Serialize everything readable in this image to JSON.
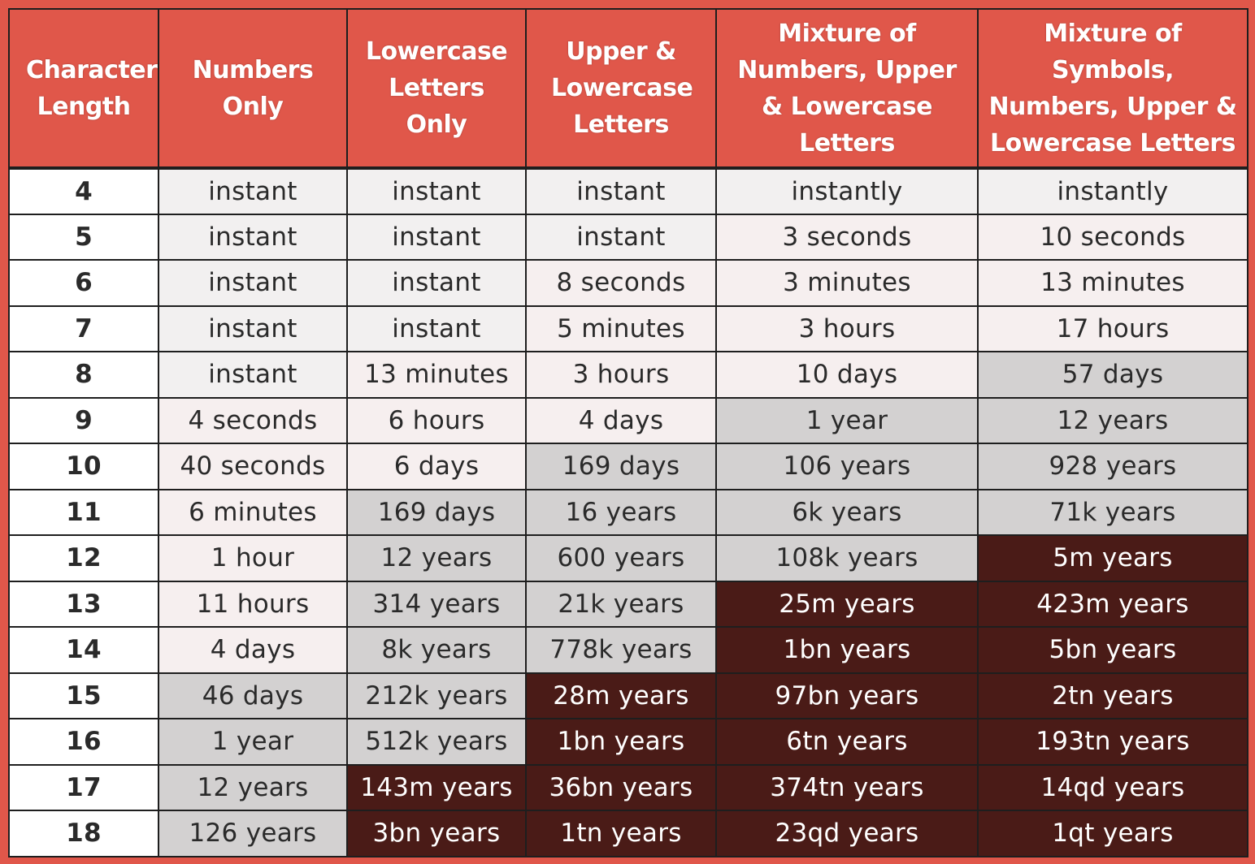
{
  "chart_data": {
    "type": "table",
    "columns": [
      "Character Length",
      "Numbers Only",
      "Lowercase Letters Only",
      "Upper & Lowercase Letters",
      "Mixture of Numbers, Upper & Lowercase Letters",
      "Mixture of Symbols, Numbers, Upper & Lowercase Letters"
    ],
    "rows": [
      {
        "length": "4",
        "cells": [
          "instant",
          "instant",
          "instant",
          "instantly",
          "instantly"
        ],
        "levels": [
          0,
          0,
          0,
          0,
          0
        ]
      },
      {
        "length": "5",
        "cells": [
          "instant",
          "instant",
          "instant",
          "3 seconds",
          "10 seconds"
        ],
        "levels": [
          0,
          0,
          0,
          1,
          1
        ]
      },
      {
        "length": "6",
        "cells": [
          "instant",
          "instant",
          "8 seconds",
          "3 minutes",
          "13 minutes"
        ],
        "levels": [
          0,
          0,
          1,
          1,
          1
        ]
      },
      {
        "length": "7",
        "cells": [
          "instant",
          "instant",
          "5 minutes",
          "3 hours",
          "17 hours"
        ],
        "levels": [
          0,
          0,
          1,
          1,
          1
        ]
      },
      {
        "length": "8",
        "cells": [
          "instant",
          "13 minutes",
          "3 hours",
          "10 days",
          "57 days"
        ],
        "levels": [
          0,
          1,
          1,
          1,
          2
        ]
      },
      {
        "length": "9",
        "cells": [
          "4 seconds",
          "6 hours",
          "4 days",
          "1 year",
          "12 years"
        ],
        "levels": [
          1,
          1,
          1,
          2,
          2
        ]
      },
      {
        "length": "10",
        "cells": [
          "40 seconds",
          "6 days",
          "169 days",
          "106 years",
          "928 years"
        ],
        "levels": [
          1,
          1,
          2,
          2,
          2
        ]
      },
      {
        "length": "11",
        "cells": [
          "6 minutes",
          "169 days",
          "16 years",
          "6k years",
          "71k years"
        ],
        "levels": [
          1,
          2,
          2,
          2,
          2
        ]
      },
      {
        "length": "12",
        "cells": [
          "1 hour",
          "12 years",
          "600 years",
          "108k years",
          "5m years"
        ],
        "levels": [
          1,
          2,
          2,
          2,
          3
        ]
      },
      {
        "length": "13",
        "cells": [
          "11 hours",
          "314 years",
          "21k years",
          "25m years",
          "423m years"
        ],
        "levels": [
          1,
          2,
          2,
          3,
          3
        ]
      },
      {
        "length": "14",
        "cells": [
          "4 days",
          "8k years",
          "778k years",
          "1bn years",
          "5bn years"
        ],
        "levels": [
          1,
          2,
          2,
          3,
          3
        ]
      },
      {
        "length": "15",
        "cells": [
          "46 days",
          "212k years",
          "28m years",
          "97bn years",
          "2tn years"
        ],
        "levels": [
          2,
          2,
          3,
          3,
          3
        ]
      },
      {
        "length": "16",
        "cells": [
          "1 year",
          "512k years",
          "1bn years",
          "6tn years",
          "193tn years"
        ],
        "levels": [
          2,
          2,
          3,
          3,
          3
        ]
      },
      {
        "length": "17",
        "cells": [
          "12 years",
          "143m years",
          "36bn years",
          "374tn years",
          "14qd years"
        ],
        "levels": [
          2,
          3,
          3,
          3,
          3
        ]
      },
      {
        "length": "18",
        "cells": [
          "126 years",
          "3bn years",
          "1tn years",
          "23qd years",
          "1qt years"
        ],
        "levels": [
          2,
          3,
          3,
          3,
          3
        ]
      }
    ]
  },
  "colors": {
    "header_bg": "#e0574a",
    "level_0": "#f2f0f0",
    "level_1": "#f6efef",
    "level_2": "#d3d1d1",
    "level_3": "#4a1b17"
  }
}
